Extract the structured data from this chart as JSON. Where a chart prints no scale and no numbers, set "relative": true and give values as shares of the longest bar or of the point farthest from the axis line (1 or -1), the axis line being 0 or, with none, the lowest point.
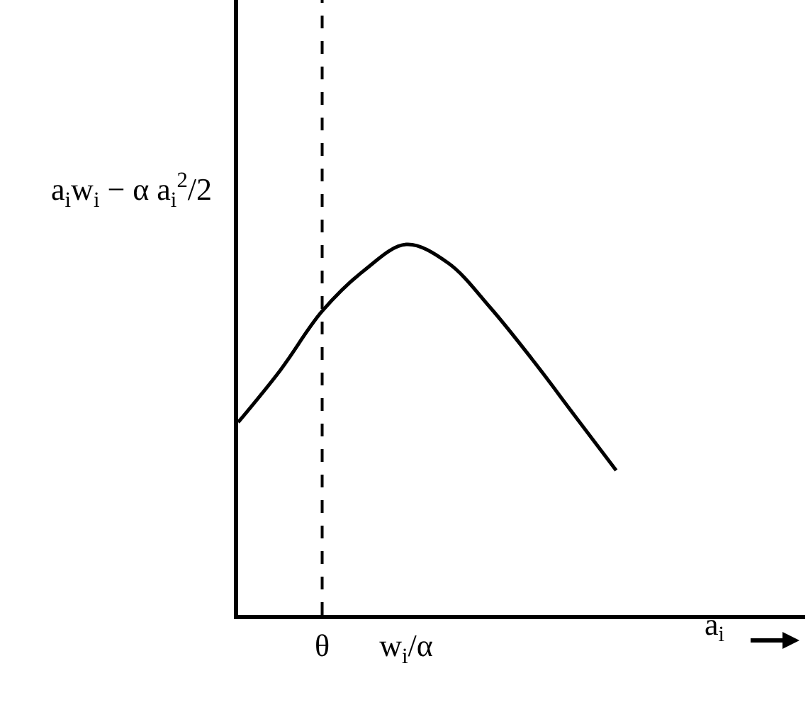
{
  "chart_data": {
    "type": "line",
    "relative": true,
    "xlabel": "a$_{i}$",
    "ylabel": "a$_{i}$w$_{i}$ − α a$_{i}$$^{2}$/2",
    "categories": [
      null,
      null,
      "θ",
      null,
      "w$_{i}$/α",
      null,
      null,
      null,
      null,
      null
    ],
    "series": [
      {
        "color": "#000000",
        "values": [
          0.52,
          0.66,
          0.82,
          0.93,
          1,
          0.95,
          0.83,
          0.69,
          0.54,
          0.39
        ]
      }
    ],
    "ref_lines": [
      {
        "axis": "x",
        "value": "θ",
        "line_style": "dashed",
        "color": "#000000"
      }
    ],
    "grid": false,
    "marker": "none",
    "line_style": "solid"
  }
}
